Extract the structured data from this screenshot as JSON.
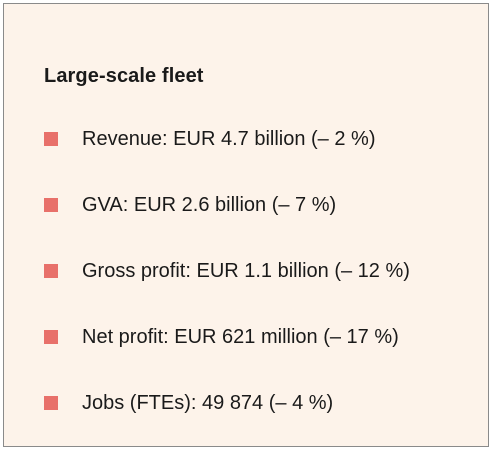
{
  "box": {
    "title": "Large-scale fleet",
    "bullet_color": "#e8706a",
    "items": [
      {
        "label": "Revenue: EUR 4.7 billion (– 2 %)"
      },
      {
        "label": "GVA: EUR 2.6 billion (– 7 %)"
      },
      {
        "label": "Gross profit: EUR 1.1 billion (– 12 %)"
      },
      {
        "label": "Net profit: EUR 621 million (– 17 %)"
      },
      {
        "label": "Jobs (FTEs): 49 874 (– 4 %)"
      }
    ]
  }
}
